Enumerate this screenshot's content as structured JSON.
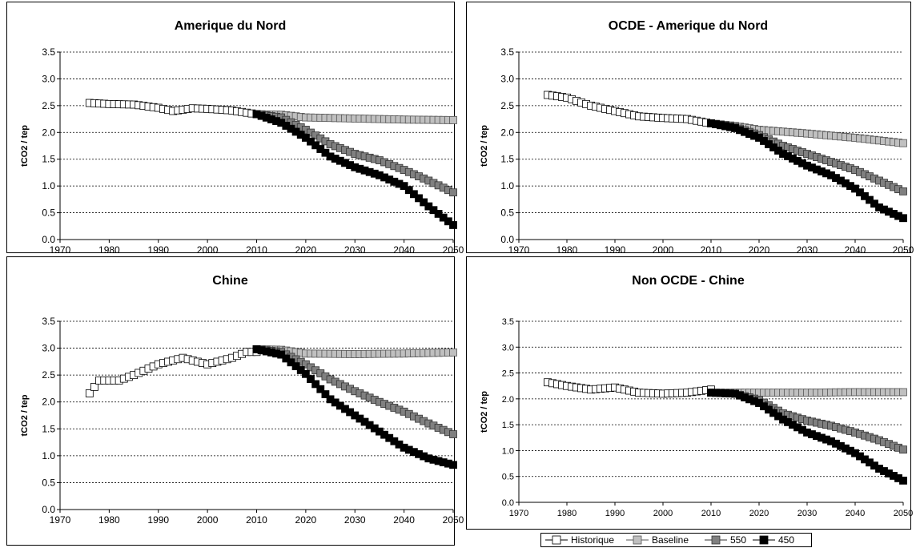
{
  "chart_data": [
    {
      "type": "line",
      "title": "Amerique du Nord",
      "ylabel": "tCO2 / tep",
      "xlabel": "",
      "xlim": [
        1970,
        2050
      ],
      "ylim": [
        0,
        3.5
      ],
      "xticks": [
        "1970",
        "1980",
        "1990",
        "2000",
        "2010",
        "2020",
        "2030",
        "2040",
        "2050"
      ],
      "yticks": [
        "0.0",
        "0.5",
        "1.0",
        "1.5",
        "2.0",
        "2.5",
        "3.0",
        "3.5"
      ],
      "grid": true,
      "series": [
        {
          "name": "Historique",
          "keys": [
            [
              1976,
              2.55
            ],
            [
              1980,
              2.53
            ],
            [
              1985,
              2.52
            ],
            [
              1990,
              2.46
            ],
            [
              1993,
              2.4
            ],
            [
              1997,
              2.45
            ],
            [
              2000,
              2.44
            ],
            [
              2005,
              2.41
            ],
            [
              2010,
              2.34
            ]
          ]
        },
        {
          "name": "Baseline",
          "keys": [
            [
              2010,
              2.34
            ],
            [
              2015,
              2.33
            ],
            [
              2020,
              2.28
            ],
            [
              2030,
              2.26
            ],
            [
              2040,
              2.24
            ],
            [
              2050,
              2.23
            ]
          ]
        },
        {
          "name": "550",
          "keys": [
            [
              2010,
              2.34
            ],
            [
              2015,
              2.28
            ],
            [
              2020,
              2.05
            ],
            [
              2025,
              1.78
            ],
            [
              2030,
              1.6
            ],
            [
              2035,
              1.48
            ],
            [
              2040,
              1.3
            ],
            [
              2045,
              1.1
            ],
            [
              2050,
              0.88
            ]
          ]
        },
        {
          "name": "450",
          "keys": [
            [
              2010,
              2.34
            ],
            [
              2015,
              2.18
            ],
            [
              2020,
              1.9
            ],
            [
              2025,
              1.55
            ],
            [
              2030,
              1.35
            ],
            [
              2035,
              1.2
            ],
            [
              2040,
              1.0
            ],
            [
              2045,
              0.62
            ],
            [
              2050,
              0.27
            ]
          ]
        }
      ]
    },
    {
      "type": "line",
      "title": "OCDE - Amerique du Nord",
      "ylabel": "tCO2 / tep",
      "xlabel": "",
      "xlim": [
        1970,
        2050
      ],
      "ylim": [
        0,
        3.5
      ],
      "xticks": [
        "1970",
        "1980",
        "1990",
        "2000",
        "2010",
        "2020",
        "2030",
        "2040",
        "2050"
      ],
      "yticks": [
        "0.0",
        "0.5",
        "1.0",
        "1.5",
        "2.0",
        "2.5",
        "3.0",
        "3.5"
      ],
      "grid": true,
      "series": [
        {
          "name": "Historique",
          "keys": [
            [
              1976,
              2.7
            ],
            [
              1980,
              2.65
            ],
            [
              1985,
              2.5
            ],
            [
              1990,
              2.4
            ],
            [
              1995,
              2.3
            ],
            [
              2000,
              2.27
            ],
            [
              2005,
              2.25
            ],
            [
              2010,
              2.17
            ]
          ]
        },
        {
          "name": "Baseline",
          "keys": [
            [
              2010,
              2.17
            ],
            [
              2015,
              2.12
            ],
            [
              2020,
              2.05
            ],
            [
              2030,
              1.98
            ],
            [
              2040,
              1.9
            ],
            [
              2050,
              1.8
            ]
          ]
        },
        {
          "name": "550",
          "keys": [
            [
              2010,
              2.17
            ],
            [
              2015,
              2.1
            ],
            [
              2020,
              1.95
            ],
            [
              2025,
              1.75
            ],
            [
              2030,
              1.6
            ],
            [
              2035,
              1.45
            ],
            [
              2040,
              1.3
            ],
            [
              2045,
              1.1
            ],
            [
              2050,
              0.9
            ]
          ]
        },
        {
          "name": "450",
          "keys": [
            [
              2010,
              2.17
            ],
            [
              2015,
              2.08
            ],
            [
              2020,
              1.9
            ],
            [
              2025,
              1.6
            ],
            [
              2030,
              1.38
            ],
            [
              2035,
              1.2
            ],
            [
              2040,
              0.95
            ],
            [
              2045,
              0.6
            ],
            [
              2050,
              0.4
            ]
          ]
        }
      ]
    },
    {
      "type": "line",
      "title": "Chine",
      "ylabel": "tCO2 / tep",
      "xlabel": "",
      "xlim": [
        1970,
        2050
      ],
      "ylim": [
        0,
        3.5
      ],
      "xticks": [
        "1970",
        "1980",
        "1990",
        "2000",
        "2010",
        "2020",
        "2030",
        "2040",
        "2050"
      ],
      "yticks": [
        "0.0",
        "0.5",
        "1.0",
        "1.5",
        "2.0",
        "2.5",
        "3.0",
        "3.5"
      ],
      "grid": true,
      "series": [
        {
          "name": "Historique",
          "keys": [
            [
              1976,
              2.16
            ],
            [
              1978,
              2.4
            ],
            [
              1982,
              2.4
            ],
            [
              1985,
              2.5
            ],
            [
              1990,
              2.7
            ],
            [
              1995,
              2.82
            ],
            [
              2000,
              2.7
            ],
            [
              2005,
              2.82
            ],
            [
              2008,
              2.93
            ],
            [
              2010,
              2.93
            ]
          ]
        },
        {
          "name": "Baseline",
          "keys": [
            [
              2010,
              2.98
            ],
            [
              2015,
              2.97
            ],
            [
              2020,
              2.9
            ],
            [
              2030,
              2.89
            ],
            [
              2040,
              2.9
            ],
            [
              2050,
              2.92
            ]
          ]
        },
        {
          "name": "550",
          "keys": [
            [
              2010,
              2.98
            ],
            [
              2015,
              2.93
            ],
            [
              2020,
              2.7
            ],
            [
              2025,
              2.42
            ],
            [
              2030,
              2.2
            ],
            [
              2035,
              2.0
            ],
            [
              2040,
              1.82
            ],
            [
              2045,
              1.6
            ],
            [
              2050,
              1.4
            ]
          ]
        },
        {
          "name": "450",
          "keys": [
            [
              2010,
              2.98
            ],
            [
              2015,
              2.88
            ],
            [
              2020,
              2.52
            ],
            [
              2025,
              2.05
            ],
            [
              2030,
              1.75
            ],
            [
              2035,
              1.45
            ],
            [
              2040,
              1.15
            ],
            [
              2045,
              0.95
            ],
            [
              2050,
              0.83
            ]
          ]
        }
      ]
    },
    {
      "type": "line",
      "title": "Non OCDE - Chine",
      "ylabel": "tCO2 / tep",
      "xlabel": "",
      "xlim": [
        1970,
        2050
      ],
      "ylim": [
        0,
        3.5
      ],
      "xticks": [
        "1970",
        "1980",
        "1990",
        "2000",
        "2010",
        "2020",
        "2030",
        "2040",
        "2050"
      ],
      "yticks": [
        "0.0",
        "0.5",
        "1.0",
        "1.5",
        "2.0",
        "2.5",
        "3.0",
        "3.5"
      ],
      "grid": true,
      "series": [
        {
          "name": "Historique",
          "keys": [
            [
              1976,
              2.32
            ],
            [
              1980,
              2.25
            ],
            [
              1985,
              2.18
            ],
            [
              1990,
              2.22
            ],
            [
              1995,
              2.12
            ],
            [
              2000,
              2.1
            ],
            [
              2005,
              2.12
            ],
            [
              2010,
              2.18
            ]
          ]
        },
        {
          "name": "Baseline",
          "keys": [
            [
              2010,
              2.12
            ],
            [
              2020,
              2.12
            ],
            [
              2030,
              2.12
            ],
            [
              2040,
              2.13
            ],
            [
              2050,
              2.13
            ]
          ]
        },
        {
          "name": "550",
          "keys": [
            [
              2010,
              2.12
            ],
            [
              2015,
              2.1
            ],
            [
              2020,
              1.98
            ],
            [
              2025,
              1.72
            ],
            [
              2030,
              1.58
            ],
            [
              2035,
              1.48
            ],
            [
              2040,
              1.35
            ],
            [
              2045,
              1.2
            ],
            [
              2050,
              1.02
            ]
          ]
        },
        {
          "name": "450",
          "keys": [
            [
              2010,
              2.12
            ],
            [
              2015,
              2.1
            ],
            [
              2020,
              1.92
            ],
            [
              2025,
              1.6
            ],
            [
              2030,
              1.35
            ],
            [
              2035,
              1.18
            ],
            [
              2040,
              0.95
            ],
            [
              2045,
              0.65
            ],
            [
              2050,
              0.42
            ]
          ]
        }
      ]
    }
  ],
  "legend": {
    "placement": "bottom",
    "items": [
      {
        "label": "Historique",
        "style": "hollow"
      },
      {
        "label": "Baseline",
        "style": "light"
      },
      {
        "label": "550",
        "style": "mid"
      },
      {
        "label": "450",
        "style": "dark"
      }
    ]
  },
  "colors": {
    "Historique": {
      "fill": "#ffffff",
      "stroke": "#000000",
      "line": "#000000"
    },
    "Baseline": {
      "fill": "#c0c0c0",
      "stroke": "#555555",
      "line": "#555555"
    },
    "550": {
      "fill": "#808080",
      "stroke": "#333333",
      "line": "#333333"
    },
    "450": {
      "fill": "#000000",
      "stroke": "#000000",
      "line": "#000000"
    }
  }
}
